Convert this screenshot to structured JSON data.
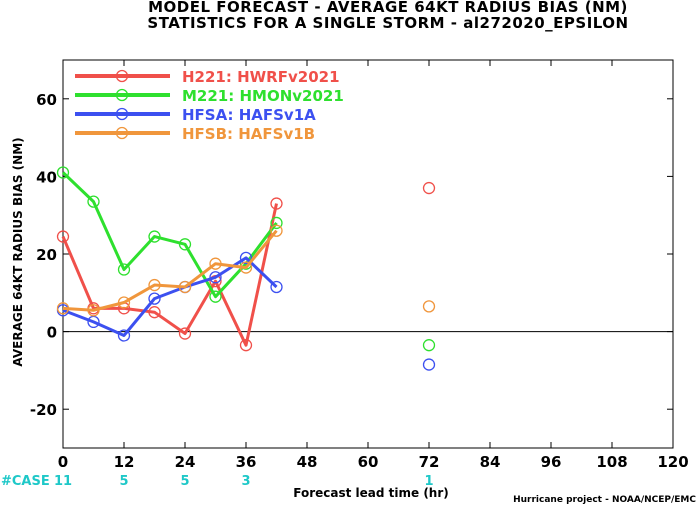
{
  "header": {
    "title_line1": "MODEL FORECAST - AVERAGE 64KT RADIUS BIAS (NM)",
    "title_line2": "STATISTICS FOR A SINGLE STORM - al272020_EPSILON"
  },
  "footer": {
    "credit": "Hurricane project - NOAA/NCEP/EMC",
    "case_label": "#CASE",
    "case_counts": [
      {
        "x": 0,
        "count": "11"
      },
      {
        "x": 12,
        "count": "5"
      },
      {
        "x": 24,
        "count": "5"
      },
      {
        "x": 36,
        "count": "3"
      },
      {
        "x": 72,
        "count": "1"
      }
    ]
  },
  "colors": {
    "H221": "#f0504a",
    "M221": "#2ee02e",
    "HFSA": "#3c50f0",
    "HFSB": "#f0963c",
    "zero_line": "#000000",
    "case_text": "#1ec8c8"
  },
  "chart_data": {
    "type": "line",
    "xlabel": "Forecast lead time (hr)",
    "ylabel": "AVERAGE 64KT RADIUS BIAS (NM)",
    "xlim": [
      0,
      120
    ],
    "ylim": [
      -30,
      70
    ],
    "xticks": [
      0,
      12,
      24,
      36,
      48,
      60,
      72,
      84,
      96,
      108,
      120
    ],
    "yticks": [
      -20,
      0,
      20,
      40,
      60
    ],
    "grid": false,
    "legend_position": "top-left",
    "series": [
      {
        "key": "H221",
        "name": "H221: HWRFv2021",
        "x": [
          0,
          6,
          12,
          18,
          24,
          30,
          36,
          42
        ],
        "y": [
          24.5,
          6,
          6,
          5,
          -0.5,
          13,
          -3.5,
          33
        ],
        "isolated": [
          {
            "x": 72,
            "y": 37
          }
        ]
      },
      {
        "key": "M221",
        "name": "M221: HMONv2021",
        "x": [
          0,
          6,
          12,
          18,
          24,
          30,
          36,
          42
        ],
        "y": [
          41,
          33.5,
          16,
          24.5,
          22.5,
          9,
          17.5,
          28
        ],
        "isolated": [
          {
            "x": 72,
            "y": -3.5
          }
        ]
      },
      {
        "key": "HFSA",
        "name": "HFSA: HAFSv1A",
        "x": [
          0,
          6,
          12,
          18,
          24,
          30,
          36,
          42
        ],
        "y": [
          5.5,
          2.5,
          -1,
          8.5,
          11.5,
          14,
          19,
          11.5
        ],
        "isolated": [
          {
            "x": 72,
            "y": -8.5
          }
        ]
      },
      {
        "key": "HFSB",
        "name": "HFSB: HAFSv1B",
        "x": [
          0,
          6,
          12,
          18,
          24,
          30,
          36,
          42
        ],
        "y": [
          6,
          5.5,
          7.5,
          12,
          11.5,
          17.5,
          16.5,
          26
        ],
        "isolated": [
          {
            "x": 72,
            "y": 6.5
          }
        ]
      }
    ]
  }
}
